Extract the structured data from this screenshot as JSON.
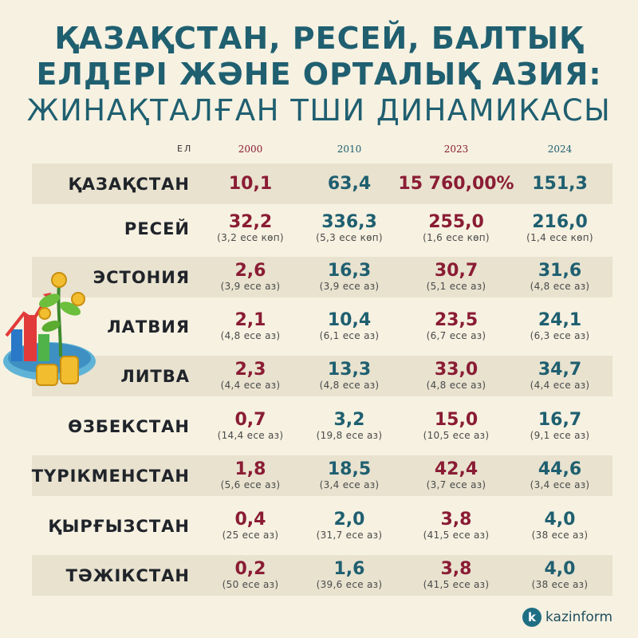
{
  "title": {
    "line1": "ҚАЗАҚСТАН, РЕСЕЙ, БАЛТЫҚ",
    "line2": "ЕЛДЕРІ ЖӘНЕ ОРТАЛЫҚ АЗИЯ:",
    "line3": "ЖИНАҚТАЛҒАН ТШИ ДИНАМИКАСЫ"
  },
  "logo_text": "kazinform",
  "logo_letter": "k",
  "colors": {
    "background": "#f6f1e1",
    "maroon": "#8a1c34",
    "teal": "#1f5f70",
    "shade": "#e8e2cf"
  },
  "chart_data": {
    "type": "table",
    "title": "ҚАЗАҚСТАН, РЕСЕЙ, БАЛТЫҚ ЕЛДЕРІ ЖӘНЕ ОРТАЛЫҚ АЗИЯ: ЖИНАҚТАЛҒАН ТШИ ДИНАМИКАСЫ",
    "column_header": "ЕЛ",
    "years": [
      "2000",
      "2010",
      "2023",
      "2024"
    ],
    "rows": [
      {
        "country": "ҚАЗАҚСТАН",
        "values": [
          "10,1",
          "63,4",
          "15 760,00%",
          "151,3"
        ],
        "notes": [
          "",
          "",
          "",
          ""
        ]
      },
      {
        "country": "РЕСЕЙ",
        "values": [
          "32,2",
          "336,3",
          "255,0",
          "216,0"
        ],
        "notes": [
          "(3,2 есе көп)",
          "(5,3 есе көп)",
          "(1,6 есе көп)",
          "(1,4 есе көп)"
        ]
      },
      {
        "country": "ЭСТОНИЯ",
        "values": [
          "2,6",
          "16,3",
          "30,7",
          "31,6"
        ],
        "notes": [
          "(3,9 есе аз)",
          "(3,9 есе аз)",
          "(5,1 есе аз)",
          "(4,8 есе аз)"
        ]
      },
      {
        "country": "ЛАТВИЯ",
        "values": [
          "2,1",
          "10,4",
          "23,5",
          "24,1"
        ],
        "notes": [
          "(4,8 есе аз)",
          "(6,1 есе аз)",
          "(6,7 есе аз)",
          "(6,3 есе аз)"
        ]
      },
      {
        "country": "ЛИТВА",
        "values": [
          "2,3",
          "13,3",
          "33,0",
          "34,7"
        ],
        "notes": [
          "(4,4 есе аз)",
          "(4,8 есе аз)",
          "(4,8 есе аз)",
          "(4,4 есе аз)"
        ]
      },
      {
        "country": "ӨЗБЕКСТАН",
        "values": [
          "0,7",
          "3,2",
          "15,0",
          "16,7"
        ],
        "notes": [
          "(14,4 есе аз)",
          "(19,8 есе аз)",
          "(10,5 есе аз)",
          "(9,1 есе аз)"
        ]
      },
      {
        "country": "ТҮРІКМЕНСТАН",
        "values": [
          "1,8",
          "18,5",
          "42,4",
          "44,6"
        ],
        "notes": [
          "(5,6 есе аз)",
          "(3,4 есе аз)",
          "(3,7 есе аз)",
          "(3,4 есе аз)"
        ]
      },
      {
        "country": "ҚЫРҒЫЗСТАН",
        "values": [
          "0,4",
          "2,0",
          "3,8",
          "4,0"
        ],
        "notes": [
          "(25 есе аз)",
          "(31,7 есе аз)",
          "(41,5 есе аз)",
          "(38 есе аз)"
        ]
      },
      {
        "country": "ТӘЖІКСТАН",
        "values": [
          "0,2",
          "1,6",
          "3,8",
          "4,0"
        ],
        "notes": [
          "(50 есе аз)",
          "(39,6 есе аз)",
          "(41,5 есе аз)",
          "(38 есе аз)"
        ]
      }
    ]
  }
}
